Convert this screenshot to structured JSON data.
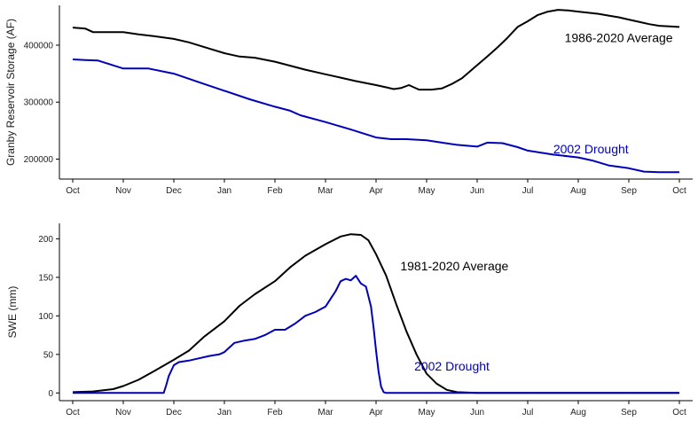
{
  "chart_data": [
    {
      "type": "line",
      "ylabel": "Granby Reservoir Storage (AF)",
      "xlabel": "",
      "ylim": [
        165000,
        470000
      ],
      "yticks": [
        200000,
        300000,
        400000
      ],
      "ytick_labels": [
        "200000",
        "300000",
        "400000"
      ],
      "xticks": [
        0,
        1,
        2,
        3,
        4,
        5,
        6,
        7,
        8,
        9,
        10,
        11,
        12
      ],
      "categories": [
        "Oct",
        "Nov",
        "Dec",
        "Jan",
        "Feb",
        "Mar",
        "Apr",
        "May",
        "Jun",
        "Jul",
        "Aug",
        "Sep",
        "Oct"
      ],
      "grid": false,
      "series": [
        {
          "name": "1986-2020 Average",
          "color": "#000000",
          "x": [
            0,
            0.25,
            0.4,
            0.6,
            1.0,
            1.3,
            1.6,
            2.0,
            2.3,
            2.7,
            3.0,
            3.3,
            3.6,
            4.0,
            4.3,
            4.6,
            5.0,
            5.3,
            5.6,
            6.0,
            6.2,
            6.35,
            6.5,
            6.65,
            6.85,
            7.1,
            7.3,
            7.5,
            7.7,
            8.0,
            8.2,
            8.4,
            8.6,
            8.8,
            9.0,
            9.2,
            9.4,
            9.6,
            9.8,
            10.0,
            10.2,
            10.4,
            10.6,
            10.8,
            11.0,
            11.2,
            11.4,
            11.6,
            11.8,
            12.0
          ],
          "values": [
            431000,
            429000,
            423000,
            423000,
            423000,
            419000,
            416000,
            411000,
            405000,
            394000,
            386000,
            380000,
            378000,
            371000,
            364000,
            357000,
            349000,
            343000,
            337000,
            330000,
            326000,
            323000,
            325000,
            330000,
            322000,
            322000,
            324000,
            332000,
            342000,
            365000,
            380000,
            396000,
            413000,
            432000,
            442000,
            453000,
            459000,
            462000,
            461000,
            459000,
            457000,
            455000,
            452000,
            449000,
            445000,
            441000,
            437000,
            434000,
            433000,
            432000
          ]
        },
        {
          "name": "2002 Drought",
          "color": "#0000bb",
          "x": [
            0,
            0.25,
            0.5,
            1.0,
            1.5,
            2.0,
            2.5,
            3.0,
            3.5,
            4.0,
            4.3,
            4.5,
            5.0,
            5.5,
            6.0,
            6.3,
            6.6,
            7.0,
            7.3,
            7.6,
            8.0,
            8.2,
            8.5,
            8.8,
            9.0,
            9.5,
            10.0,
            10.3,
            10.6,
            11.0,
            11.3,
            11.6,
            12.0
          ],
          "values": [
            375000,
            374000,
            373000,
            359000,
            359000,
            350000,
            335000,
            320000,
            305000,
            292000,
            285000,
            277000,
            265000,
            252000,
            238000,
            235000,
            235000,
            233000,
            229000,
            225000,
            222000,
            229000,
            228000,
            221000,
            215000,
            208000,
            203000,
            197000,
            189000,
            184000,
            178000,
            177000,
            177000
          ]
        }
      ],
      "annotations": [
        {
          "text": "1986-2020 Average",
          "x": 10.8,
          "y": 413000,
          "color": "#000000"
        },
        {
          "text": "2002 Drought",
          "x": 10.25,
          "y": 218000,
          "color": "#0000bb"
        }
      ]
    },
    {
      "type": "line",
      "ylabel": "SWE (mm)",
      "xlabel": "",
      "ylim": [
        -10,
        220
      ],
      "yticks": [
        0,
        50,
        100,
        150,
        200
      ],
      "ytick_labels": [
        "0",
        "50",
        "100",
        "150",
        "200"
      ],
      "xticks": [
        0,
        1,
        2,
        3,
        4,
        5,
        6,
        7,
        8,
        9,
        10,
        11,
        12
      ],
      "categories": [
        "Oct",
        "Nov",
        "Dec",
        "Jan",
        "Feb",
        "Mar",
        "Apr",
        "May",
        "Jun",
        "Jul",
        "Aug",
        "Sep",
        "Oct"
      ],
      "grid": false,
      "series": [
        {
          "name": "1981-2020 Average",
          "color": "#000000",
          "x": [
            0,
            0.4,
            0.8,
            1.0,
            1.3,
            1.6,
            2.0,
            2.3,
            2.6,
            3.0,
            3.3,
            3.6,
            4.0,
            4.3,
            4.6,
            5.0,
            5.3,
            5.5,
            5.7,
            5.85,
            6.0,
            6.2,
            6.4,
            6.6,
            6.8,
            7.0,
            7.2,
            7.4,
            7.6,
            8.0,
            9.0,
            10.0,
            11.0,
            12.0
          ],
          "values": [
            1,
            2,
            5,
            9,
            17,
            28,
            43,
            55,
            73,
            93,
            113,
            128,
            145,
            163,
            178,
            193,
            203,
            206,
            205,
            198,
            180,
            152,
            115,
            80,
            50,
            25,
            12,
            4,
            1,
            0,
            0,
            0,
            0,
            0
          ]
        },
        {
          "name": "2002 Drought",
          "color": "#0000bb",
          "x": [
            0,
            1.0,
            1.8,
            1.85,
            1.9,
            2.0,
            2.1,
            2.3,
            2.5,
            2.7,
            2.9,
            3.0,
            3.2,
            3.4,
            3.6,
            3.8,
            4.0,
            4.2,
            4.4,
            4.6,
            4.8,
            5.0,
            5.1,
            5.2,
            5.3,
            5.4,
            5.5,
            5.6,
            5.7,
            5.8,
            5.9,
            5.95,
            6.0,
            6.05,
            6.1,
            6.15,
            6.2,
            7.0,
            8.0,
            9.0,
            10.0,
            11.0,
            12.0
          ],
          "values": [
            0,
            0,
            0,
            10,
            22,
            36,
            40,
            42,
            45,
            48,
            50,
            53,
            65,
            68,
            70,
            75,
            82,
            82,
            90,
            100,
            105,
            112,
            122,
            132,
            145,
            148,
            146,
            152,
            142,
            138,
            112,
            85,
            55,
            28,
            8,
            1,
            0,
            0,
            0,
            0,
            0,
            0,
            0
          ]
        }
      ],
      "annotations": [
        {
          "text": "1981-2020 Average",
          "x": 7.55,
          "y": 165,
          "color": "#000000"
        },
        {
          "text": "2002 Drought",
          "x": 7.5,
          "y": 35,
          "color": "#0000bb"
        }
      ]
    }
  ]
}
